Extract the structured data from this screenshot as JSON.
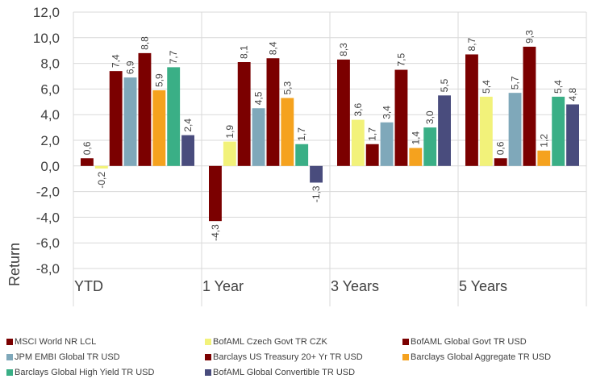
{
  "chart_data": {
    "type": "bar",
    "categories": [
      "YTD",
      "1 Year",
      "3 Years",
      "5 Years"
    ],
    "ylabel": "Return",
    "ylim": [
      -8,
      12
    ],
    "yticks": [
      "12,0",
      "10,0",
      "8,0",
      "6,0",
      "4,0",
      "2,0",
      "0,0",
      "-2,0",
      "-4,0",
      "-6,0",
      "-8,0"
    ],
    "ytick_values": [
      12,
      10,
      8,
      6,
      4,
      2,
      0,
      -2,
      -4,
      -6,
      -8
    ],
    "grid": true,
    "legend_position": "bottom",
    "series": [
      {
        "name": "MSCI World NR LCL",
        "color": "#7b0000",
        "values": [
          0.6,
          -4.3,
          8.3,
          8.7
        ],
        "labels": [
          "0,6",
          "-4,3",
          "8,3",
          "8,7"
        ]
      },
      {
        "name": "BofAML Czech Govt TR CZK",
        "color": "#f2f27a",
        "values": [
          -0.2,
          1.9,
          3.6,
          5.4
        ],
        "labels": [
          "-0,2",
          "1,9",
          "3,6",
          "5,4"
        ]
      },
      {
        "name": "BofAML Global Govt TR USD",
        "color": "#7b0000",
        "values": [
          7.4,
          8.1,
          1.7,
          0.6
        ],
        "labels": [
          "7,4",
          "8,1",
          "1,7",
          "0,6"
        ]
      },
      {
        "name": "JPM EMBI Global TR USD",
        "color": "#7fa8ba",
        "values": [
          6.9,
          4.5,
          3.4,
          5.7
        ],
        "labels": [
          "6,9",
          "4,5",
          "3,4",
          "5,7"
        ]
      },
      {
        "name": "Barclays US Treasury 20+ Yr TR USD",
        "color": "#7b0000",
        "values": [
          8.8,
          8.4,
          7.5,
          9.3
        ],
        "labels": [
          "8,8",
          "8,4",
          "7,5",
          "9,3"
        ]
      },
      {
        "name": "Barclays Global Aggregate TR USD",
        "color": "#f5a21e",
        "values": [
          5.9,
          5.3,
          1.4,
          1.2
        ],
        "labels": [
          "5,9",
          "5,3",
          "1,4",
          "1,2"
        ]
      },
      {
        "name": "Barclays Global High Yield TR USD",
        "color": "#3aaf86",
        "values": [
          7.7,
          1.7,
          3.0,
          5.4
        ],
        "labels": [
          "7,7",
          "1,7",
          "3,0",
          "5,4"
        ]
      },
      {
        "name": "BofAML Global Convertible TR USD",
        "color": "#494c7d",
        "values": [
          2.4,
          -1.3,
          5.5,
          4.8
        ],
        "labels": [
          "2,4",
          "-1,3",
          "5,5",
          "4,8"
        ]
      }
    ]
  }
}
